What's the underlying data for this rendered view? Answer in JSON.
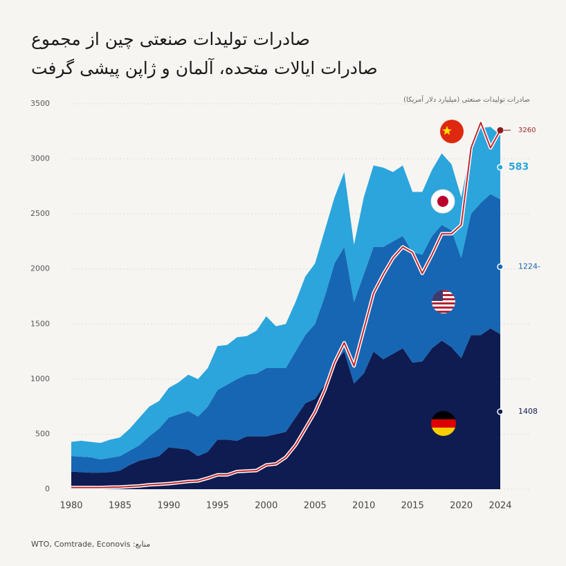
{
  "title_lines": [
    "صادرات تولیدات صنعتی چین از مجموع",
    "صادرات ایالات متحده، آلمان و ژاپن پیشی گرفت"
  ],
  "source": "منابع: WTO, Comtrade, Econovis",
  "chart_data": {
    "type": "stacked-area",
    "y_label": "صادرات تولیدات صنعتی (میلیارد دلار آمریکا)",
    "x": [
      1980,
      1981,
      1982,
      1983,
      1984,
      1985,
      1986,
      1987,
      1988,
      1989,
      1990,
      1991,
      1992,
      1993,
      1994,
      1995,
      1996,
      1997,
      1998,
      1999,
      2000,
      2001,
      2002,
      2003,
      2004,
      2005,
      2006,
      2007,
      2008,
      2009,
      2010,
      2011,
      2012,
      2013,
      2014,
      2015,
      2016,
      2017,
      2018,
      2019,
      2020,
      2021,
      2022,
      2023,
      2024
    ],
    "xlim": [
      1980,
      2024
    ],
    "xticks": [
      1980,
      1985,
      1990,
      1995,
      2000,
      2005,
      2010,
      2015,
      2020,
      2024
    ],
    "ylim": [
      0,
      3500
    ],
    "yticks": [
      0,
      500,
      1000,
      1500,
      2000,
      2500,
      3000,
      3500
    ],
    "grid": true,
    "series": [
      {
        "color": "#0f1c52",
        "values": [
          160,
          155,
          150,
          150,
          155,
          170,
          220,
          260,
          280,
          300,
          380,
          370,
          360,
          300,
          340,
          450,
          450,
          440,
          480,
          480,
          480,
          500,
          520,
          650,
          780,
          820,
          950,
          1150,
          1250,
          960,
          1050,
          1250,
          1180,
          1230,
          1280,
          1150,
          1160,
          1280,
          1350,
          1290,
          1190,
          1400,
          1400,
          1460,
          1408
        ]
      },
      {
        "color": "#1766b3",
        "values": [
          140,
          140,
          140,
          120,
          130,
          130,
          130,
          140,
          200,
          250,
          270,
          310,
          350,
          360,
          410,
          450,
          500,
          560,
          560,
          570,
          620,
          600,
          580,
          600,
          620,
          680,
          800,
          900,
          950,
          740,
          900,
          950,
          1020,
          1020,
          1020,
          1000,
          970,
          1020,
          1050,
          1060,
          910,
          1100,
          1200,
          1220,
          1224
        ],
        "value_labels": [
          null,
          null,
          null,
          null,
          null,
          null,
          null,
          null,
          null,
          null,
          null,
          null,
          null,
          null,
          null,
          null,
          null,
          null,
          null,
          null,
          null,
          null,
          null,
          null,
          null,
          null,
          null,
          null,
          null,
          null,
          null,
          null,
          null,
          null,
          null,
          null,
          null,
          null,
          null,
          null,
          null,
          null,
          null,
          null,
          "1224-"
        ]
      },
      {
        "color": "#2ba5dc",
        "values": [
          130,
          145,
          140,
          150,
          165,
          170,
          200,
          250,
          270,
          250,
          270,
          290,
          330,
          340,
          350,
          400,
          360,
          380,
          350,
          390,
          470,
          380,
          400,
          450,
          530,
          550,
          600,
          600,
          680,
          520,
          700,
          740,
          720,
          630,
          640,
          550,
          570,
          600,
          650,
          600,
          550,
          600,
          680,
          610,
          583
        ]
      }
    ],
    "line": {
      "color": "#c0282d",
      "values": [
        15,
        15,
        15,
        15,
        18,
        20,
        25,
        30,
        40,
        45,
        50,
        60,
        70,
        75,
        100,
        130,
        130,
        160,
        165,
        170,
        220,
        230,
        290,
        400,
        550,
        700,
        900,
        1150,
        1330,
        1120,
        1450,
        1780,
        1950,
        2100,
        2200,
        2150,
        1960,
        2130,
        2320,
        2320,
        2400,
        3100,
        3330,
        3100,
        3260
      ]
    }
  }
}
